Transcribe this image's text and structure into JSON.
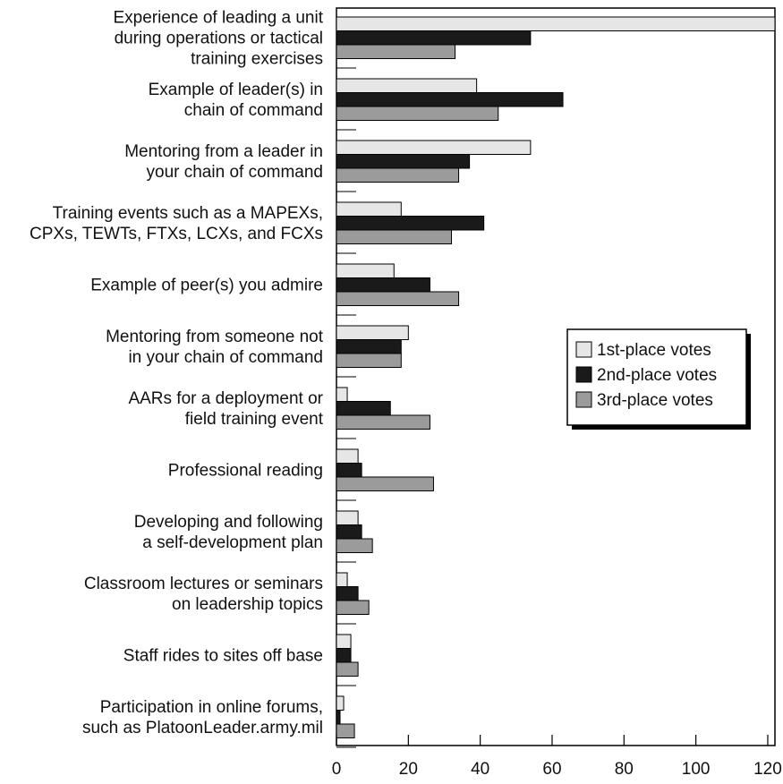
{
  "chart_data": {
    "type": "bar",
    "orientation": "horizontal",
    "categories": [
      [
        "Experience of leading a unit",
        "during operations or tactical",
        "training exercises"
      ],
      [
        "Example of leader(s) in",
        "chain of command"
      ],
      [
        "Mentoring from a leader in",
        "your chain of command"
      ],
      [
        "Training events such as a MAPEXs,",
        "CPXs, TEWTs, FTXs, LCXs, and FCXs"
      ],
      [
        "Example of peer(s) you admire"
      ],
      [
        "Mentoring from someone not",
        "in your chain of command"
      ],
      [
        "AARs for a deployment or",
        "field training event"
      ],
      [
        "Professional reading"
      ],
      [
        "Developing and following",
        "a self-development plan"
      ],
      [
        "Classroom lectures or seminars",
        "on leadership topics"
      ],
      [
        "Staff rides to sites off base"
      ],
      [
        "Participation in online forums,",
        "such as PlatoonLeader.army.mil"
      ]
    ],
    "series": [
      {
        "name": "1st-place votes",
        "color": "#e6e6e6",
        "values": [
          122,
          39,
          54,
          18,
          16,
          20,
          3,
          6,
          6,
          3,
          4,
          2
        ]
      },
      {
        "name": "2nd-place votes",
        "color": "#1a1a1a",
        "values": [
          54,
          63,
          37,
          41,
          26,
          18,
          15,
          7,
          7,
          6,
          4,
          1
        ]
      },
      {
        "name": "3rd-place votes",
        "color": "#9b9b9b",
        "values": [
          33,
          45,
          34,
          32,
          34,
          18,
          26,
          27,
          10,
          9,
          6,
          5
        ]
      }
    ],
    "xlim": [
      0,
      122
    ],
    "xticks": [
      0,
      20,
      40,
      60,
      80,
      100,
      120
    ],
    "legend_position": "right",
    "grid": false
  }
}
